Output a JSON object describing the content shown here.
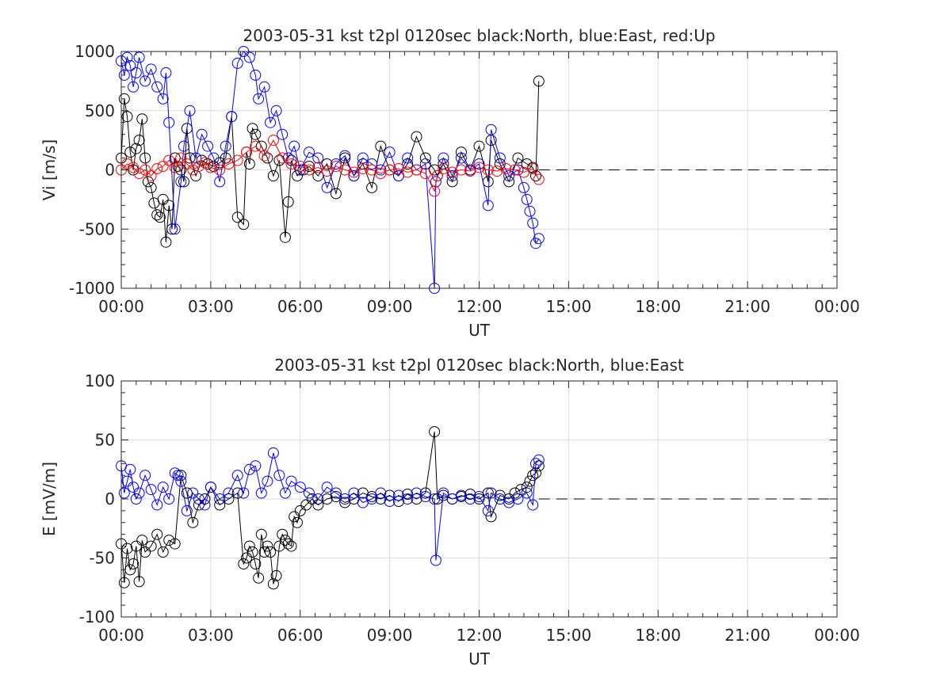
{
  "chart_data": [
    {
      "type": "scatter",
      "title": "2003-05-31 kst t2pl 0120sec black:North, blue:East, red:Up",
      "xlabel": "UT",
      "ylabel": "Vi [m/s]",
      "x_unit": "hour UT",
      "xlim": [
        0,
        24
      ],
      "ylim": [
        -1000,
        1000
      ],
      "xticks": [
        0,
        3,
        6,
        9,
        12,
        15,
        18,
        21,
        24
      ],
      "xtick_labels": [
        "00:00",
        "03:00",
        "06:00",
        "09:00",
        "12:00",
        "15:00",
        "18:00",
        "21:00",
        "00:00"
      ],
      "yticks": [
        -1000,
        -500,
        0,
        500,
        1000
      ],
      "ytick_labels": [
        "-1000",
        "-500",
        "0",
        "500",
        "1000"
      ],
      "grid": true,
      "colors": {
        "North": "#000000",
        "East": "#0000ff",
        "Up": "#ff0000"
      },
      "zero_line": {
        "y": 0,
        "style": "dashed"
      },
      "series": [
        {
          "name": "North",
          "color": "#000000",
          "x": [
            0.0,
            0.1,
            0.2,
            0.3,
            0.4,
            0.5,
            0.6,
            0.7,
            0.8,
            0.9,
            1.0,
            1.1,
            1.2,
            1.3,
            1.4,
            1.5,
            1.6,
            1.7,
            1.8,
            1.9,
            2.0,
            2.1,
            2.2,
            2.3,
            2.5,
            2.7,
            2.9,
            3.1,
            3.3,
            3.5,
            3.7,
            3.9,
            4.1,
            4.2,
            4.3,
            4.4,
            4.5,
            4.7,
            4.9,
            5.1,
            5.3,
            5.5,
            5.6,
            5.7,
            5.9,
            6.1,
            6.3,
            6.6,
            6.9,
            7.2,
            7.5,
            7.8,
            8.1,
            8.4,
            8.7,
            9.0,
            9.3,
            9.6,
            9.9,
            10.2,
            10.5,
            10.6,
            10.8,
            11.1,
            11.4,
            11.7,
            12.0,
            12.3,
            12.4,
            12.7,
            13.0,
            13.3,
            13.6,
            13.8,
            13.9,
            14.0
          ],
          "y": [
            100,
            600,
            450,
            150,
            0,
            180,
            250,
            430,
            100,
            -100,
            -150,
            -280,
            -380,
            -400,
            -250,
            -610,
            -300,
            -500,
            100,
            30,
            0,
            -100,
            350,
            100,
            -50,
            80,
            50,
            30,
            60,
            100,
            450,
            -400,
            -460,
            150,
            50,
            350,
            300,
            200,
            100,
            -50,
            80,
            -570,
            -270,
            80,
            -50,
            0,
            30,
            -50,
            50,
            -200,
            100,
            -50,
            50,
            -150,
            200,
            0,
            -50,
            50,
            280,
            100,
            0,
            -50,
            50,
            -100,
            150,
            0,
            200,
            -100,
            250,
            50,
            -100,
            100,
            50,
            20,
            -50,
            750
          ]
        },
        {
          "name": "East",
          "color": "#0000ff",
          "x": [
            0.0,
            0.1,
            0.2,
            0.3,
            0.4,
            0.5,
            0.6,
            0.8,
            1.0,
            1.2,
            1.4,
            1.5,
            1.6,
            1.8,
            2.0,
            2.1,
            2.3,
            2.5,
            2.7,
            2.9,
            3.1,
            3.3,
            3.5,
            3.7,
            3.9,
            4.1,
            4.3,
            4.5,
            4.6,
            4.8,
            5.0,
            5.2,
            5.4,
            5.6,
            5.8,
            6.0,
            6.3,
            6.6,
            6.9,
            7.2,
            7.5,
            7.8,
            8.1,
            8.4,
            8.7,
            9.0,
            9.3,
            9.6,
            9.9,
            10.2,
            10.5,
            10.55,
            10.8,
            11.1,
            11.4,
            11.7,
            12.0,
            12.3,
            12.4,
            12.7,
            13.0,
            13.3,
            13.5,
            13.6,
            13.7,
            13.8,
            13.9,
            14.0
          ],
          "y": [
            920,
            800,
            950,
            880,
            700,
            820,
            950,
            750,
            850,
            700,
            600,
            820,
            400,
            -500,
            -100,
            200,
            500,
            100,
            300,
            200,
            100,
            -100,
            200,
            450,
            900,
            1000,
            950,
            800,
            600,
            700,
            400,
            500,
            300,
            100,
            200,
            0,
            150,
            100,
            -150,
            50,
            120,
            -50,
            100,
            50,
            0,
            150,
            -50,
            100,
            0,
            50,
            -1000,
            -100,
            100,
            -50,
            100,
            0,
            50,
            -300,
            340,
            100,
            -50,
            0,
            -150,
            -250,
            -350,
            -450,
            -620,
            -580
          ]
        },
        {
          "name": "Up",
          "color": "#ff0000",
          "x": [
            0.0,
            0.2,
            0.4,
            0.6,
            0.8,
            1.0,
            1.2,
            1.4,
            1.6,
            1.8,
            2.0,
            2.2,
            2.4,
            2.6,
            2.8,
            3.0,
            3.3,
            3.6,
            3.9,
            4.2,
            4.5,
            4.8,
            5.1,
            5.4,
            5.7,
            6.0,
            6.3,
            6.6,
            6.9,
            7.2,
            7.5,
            7.8,
            8.1,
            8.4,
            8.7,
            9.0,
            9.3,
            9.6,
            9.9,
            10.2,
            10.5,
            10.6,
            10.8,
            11.1,
            11.4,
            11.7,
            12.0,
            12.3,
            12.6,
            12.9,
            13.2,
            13.5,
            13.8,
            14.0
          ],
          "y": [
            0,
            50,
            20,
            -30,
            0,
            -50,
            10,
            30,
            80,
            20,
            100,
            50,
            0,
            30,
            60,
            20,
            0,
            50,
            80,
            150,
            200,
            120,
            250,
            100,
            50,
            30,
            0,
            20,
            -10,
            30,
            0,
            -20,
            10,
            0,
            -30,
            0,
            10,
            -20,
            0,
            -30,
            -180,
            -50,
            10,
            -20,
            0,
            -10,
            20,
            0,
            -10,
            10,
            0,
            -20,
            10,
            -80
          ]
        }
      ]
    },
    {
      "type": "scatter",
      "title": "2003-05-31 kst t2pl 0120sec black:North, blue:East",
      "xlabel": "UT",
      "ylabel": "E [mV/m]",
      "x_unit": "hour UT",
      "xlim": [
        0,
        24
      ],
      "ylim": [
        -100,
        100
      ],
      "xticks": [
        0,
        3,
        6,
        9,
        12,
        15,
        18,
        21,
        24
      ],
      "xtick_labels": [
        "00:00",
        "03:00",
        "06:00",
        "09:00",
        "12:00",
        "15:00",
        "18:00",
        "21:00",
        "00:00"
      ],
      "yticks": [
        -100,
        -50,
        0,
        50,
        100
      ],
      "ytick_labels": [
        "-100",
        "-50",
        "0",
        "50",
        "100"
      ],
      "grid": true,
      "colors": {
        "North": "#000000",
        "East": "#0000ff"
      },
      "zero_line": {
        "y": 0,
        "style": "dashed"
      },
      "series": [
        {
          "name": "North",
          "color": "#000000",
          "x": [
            0.0,
            0.1,
            0.2,
            0.3,
            0.4,
            0.5,
            0.6,
            0.7,
            0.8,
            1.0,
            1.2,
            1.4,
            1.6,
            1.8,
            2.0,
            2.2,
            2.4,
            2.6,
            2.8,
            3.0,
            3.3,
            3.6,
            3.9,
            4.1,
            4.2,
            4.3,
            4.4,
            4.5,
            4.6,
            4.7,
            4.8,
            4.9,
            5.0,
            5.1,
            5.2,
            5.3,
            5.4,
            5.5,
            5.6,
            5.7,
            5.8,
            5.9,
            6.0,
            6.2,
            6.4,
            6.6,
            6.9,
            7.2,
            7.5,
            7.8,
            8.1,
            8.4,
            8.7,
            9.0,
            9.3,
            9.6,
            9.9,
            10.2,
            10.5,
            10.6,
            10.8,
            11.1,
            11.4,
            11.7,
            12.0,
            12.3,
            12.4,
            12.7,
            13.0,
            13.2,
            13.4,
            13.6,
            13.7,
            13.8,
            13.9,
            14.0
          ],
          "y": [
            -38,
            -71,
            -42,
            -60,
            -55,
            -40,
            -70,
            -35,
            -45,
            -40,
            -30,
            -45,
            -35,
            -38,
            20,
            5,
            -20,
            -5,
            0,
            10,
            -5,
            0,
            5,
            -55,
            -50,
            -40,
            -45,
            -55,
            -67,
            -30,
            -45,
            -40,
            -45,
            -72,
            -65,
            -40,
            -30,
            -35,
            -38,
            -40,
            -15,
            -20,
            -10,
            -5,
            0,
            -5,
            0,
            2,
            -3,
            0,
            5,
            2,
            0,
            3,
            -2,
            4,
            0,
            5,
            57,
            0,
            3,
            0,
            2,
            4,
            0,
            5,
            -15,
            3,
            0,
            5,
            8,
            10,
            15,
            20,
            22,
            28
          ]
        },
        {
          "name": "East",
          "color": "#0000ff",
          "x": [
            0.0,
            0.1,
            0.2,
            0.3,
            0.4,
            0.5,
            0.6,
            0.8,
            1.0,
            1.2,
            1.4,
            1.6,
            1.8,
            1.9,
            2.0,
            2.2,
            2.4,
            2.6,
            2.8,
            3.0,
            3.3,
            3.6,
            3.9,
            4.1,
            4.3,
            4.5,
            4.7,
            4.9,
            5.1,
            5.3,
            5.5,
            5.7,
            6.0,
            6.3,
            6.6,
            6.9,
            7.2,
            7.5,
            7.8,
            8.1,
            8.4,
            8.7,
            9.0,
            9.3,
            9.6,
            9.9,
            10.2,
            10.5,
            10.55,
            10.8,
            11.1,
            11.4,
            11.7,
            12.0,
            12.3,
            12.4,
            12.7,
            13.0,
            13.3,
            13.6,
            13.8,
            13.9,
            14.0
          ],
          "y": [
            28,
            5,
            15,
            25,
            10,
            0,
            5,
            20,
            8,
            -5,
            10,
            0,
            22,
            20,
            15,
            -10,
            5,
            0,
            -5,
            10,
            0,
            5,
            20,
            5,
            25,
            28,
            5,
            15,
            39,
            20,
            5,
            15,
            10,
            5,
            0,
            10,
            5,
            0,
            5,
            -3,
            0,
            5,
            -2,
            3,
            0,
            5,
            2,
            0,
            -52,
            5,
            0,
            3,
            0,
            2,
            -10,
            5,
            0,
            -3,
            0,
            5,
            -5,
            30,
            33
          ]
        }
      ]
    }
  ]
}
